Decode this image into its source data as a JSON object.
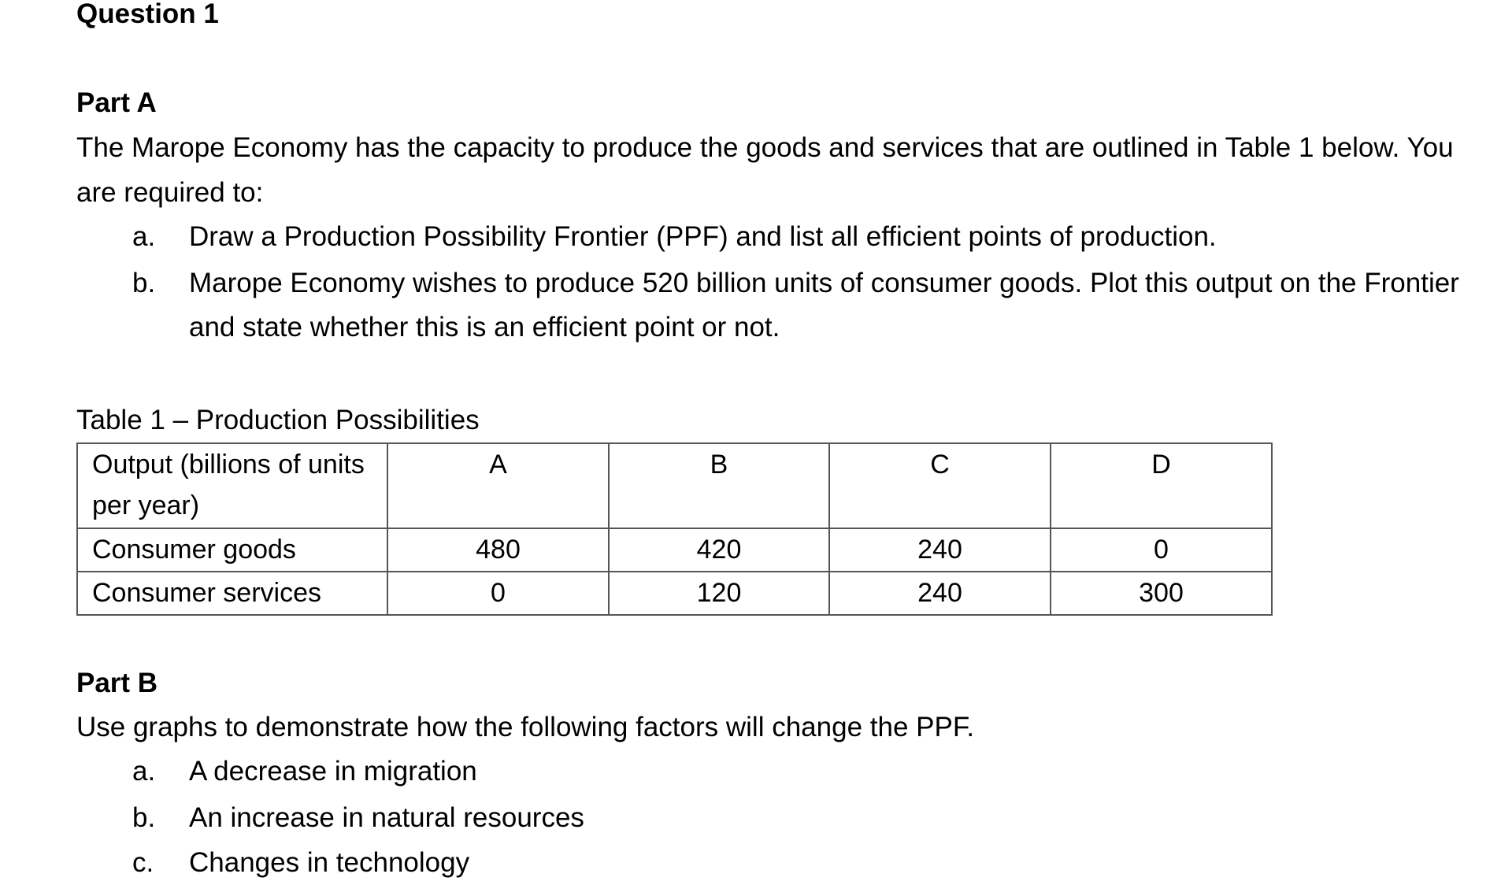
{
  "title": "Question 1",
  "part_a": {
    "heading": "Part A",
    "intro": "The Marope Economy has the capacity to produce the goods and services that are outlined in Table 1 below. You are required to:",
    "items": [
      {
        "marker": "a.",
        "text": "Draw a Production Possibility Frontier (PPF) and list all efficient points of production."
      },
      {
        "marker": "b.",
        "text": "Marope Economy wishes to produce 520 billion units of consumer goods. Plot this output on the Frontier and state whether this is an efficient point or not."
      }
    ]
  },
  "table": {
    "caption": "Table 1 – Production Possibilities",
    "header": [
      "Output (billions of units per year)",
      "A",
      "B",
      "C",
      "D"
    ],
    "rows": [
      [
        "Consumer goods",
        480,
        420,
        240,
        0
      ],
      [
        "Consumer services",
        0,
        120,
        240,
        300
      ]
    ]
  },
  "part_b": {
    "heading": "Part B",
    "intro": "Use graphs to demonstrate how the following factors will change the PPF.",
    "items": [
      {
        "marker": "a.",
        "text": "A decrease in migration"
      },
      {
        "marker": "b.",
        "text": "An increase in natural resources"
      },
      {
        "marker": "c.",
        "text": "Changes in technology"
      }
    ]
  }
}
